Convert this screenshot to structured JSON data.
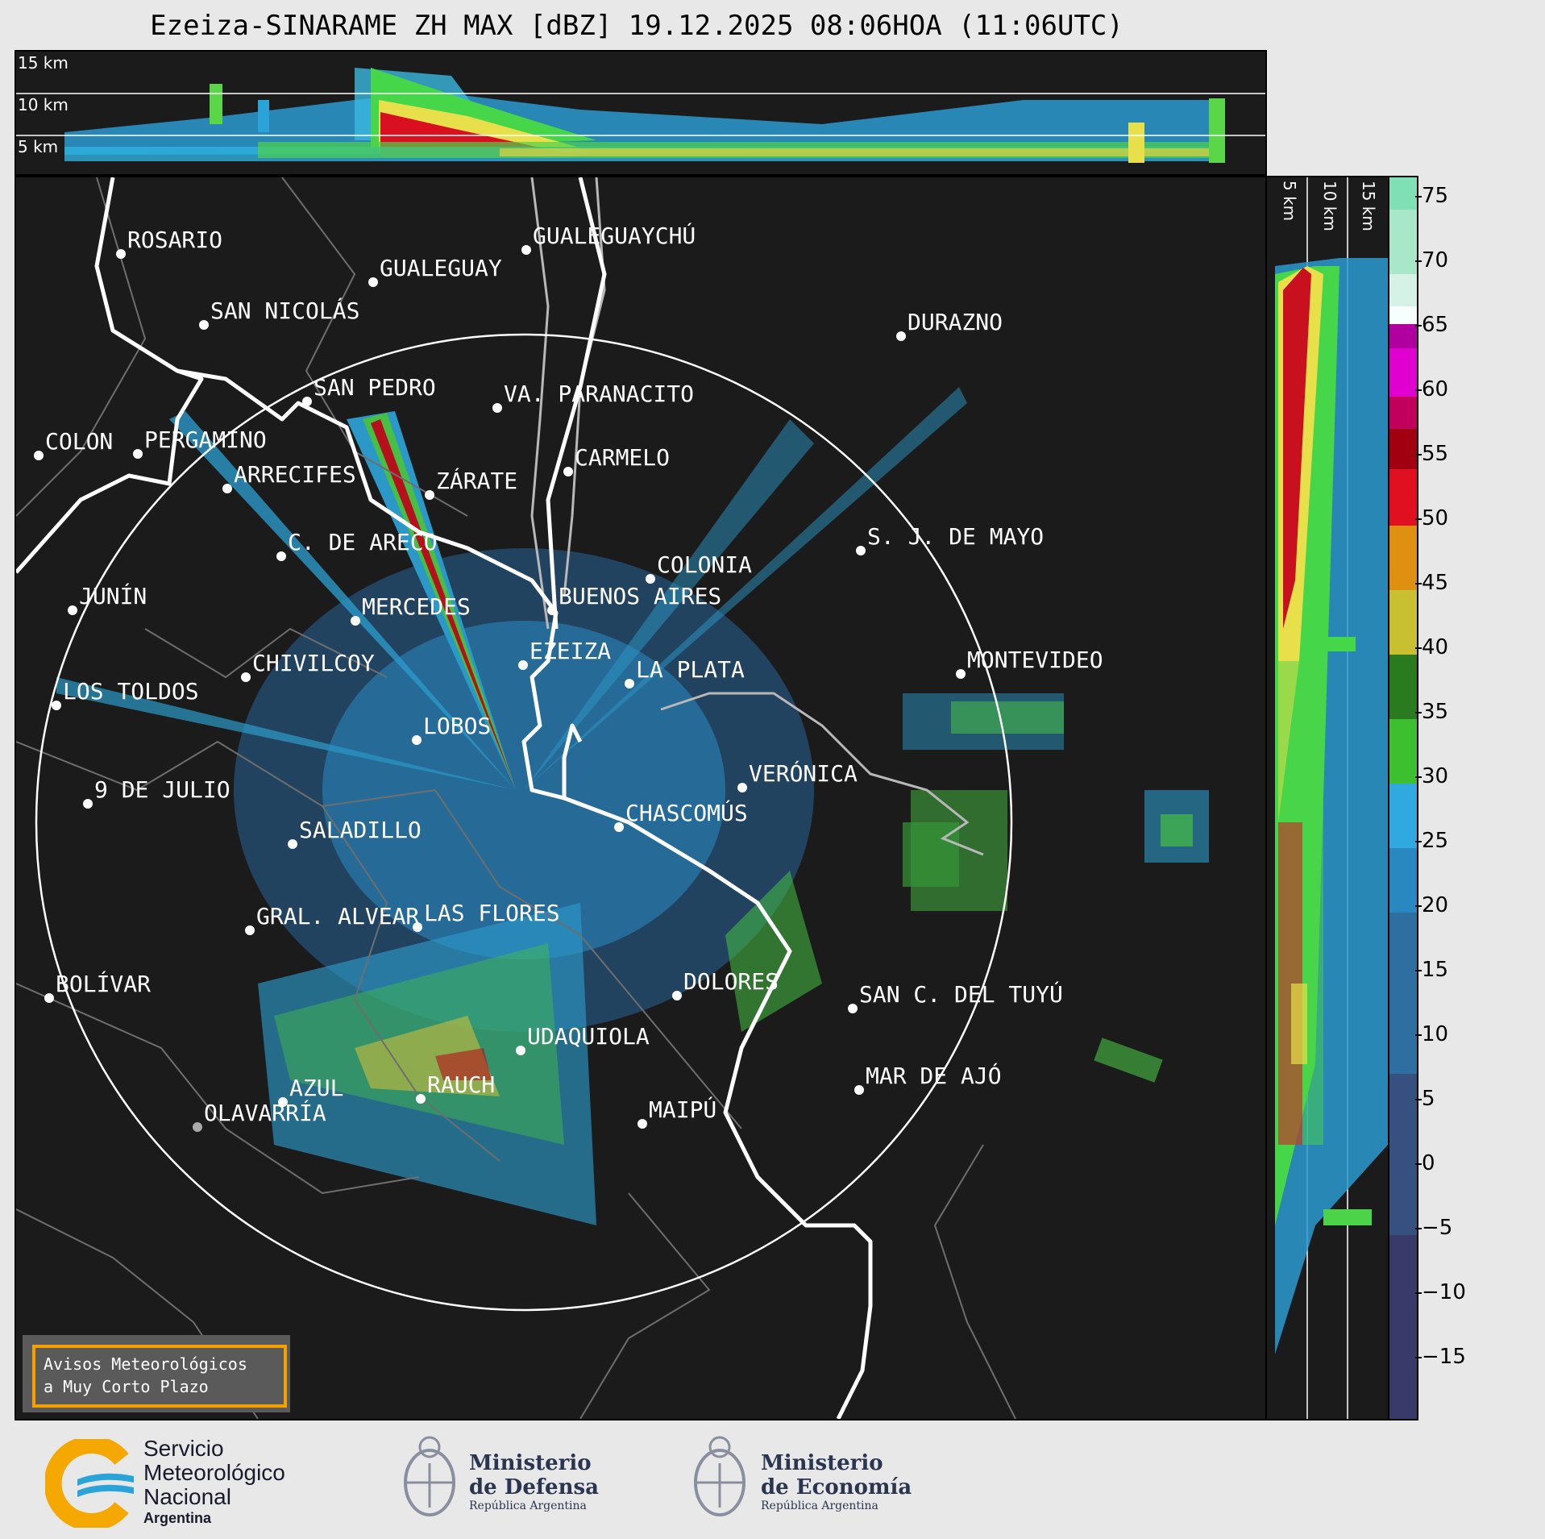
{
  "title": "Ezeiza-SINARAME ZH MAX [dBZ] 19.12.2025 08:06HOA (11:06UTC)",
  "height_labels": [
    "15 km",
    "10 km",
    "5 km"
  ],
  "cities": [
    {
      "name": "ROSARIO"
    },
    {
      "name": "GUALEGUAYCHÚ"
    },
    {
      "name": "GUALEGUAY"
    },
    {
      "name": "SAN NICOLÁS"
    },
    {
      "name": "DURAZNO"
    },
    {
      "name": "SAN PEDRO"
    },
    {
      "name": "VA. PARANACITO"
    },
    {
      "name": "COLON"
    },
    {
      "name": "PERGAMINO"
    },
    {
      "name": "CARMELO"
    },
    {
      "name": "ARRECIFES"
    },
    {
      "name": "ZÁRATE"
    },
    {
      "name": "S. J. DE MAYO"
    },
    {
      "name": "C. DE ARECO"
    },
    {
      "name": "COLONIA"
    },
    {
      "name": "JUNÍN"
    },
    {
      "name": "BUENOS AIRES"
    },
    {
      "name": "MERCEDES"
    },
    {
      "name": "MONTEVIDEO"
    },
    {
      "name": "EZEIZA"
    },
    {
      "name": "CHIVILCOY"
    },
    {
      "name": "LA PLATA"
    },
    {
      "name": "LOS TOLDOS"
    },
    {
      "name": "LOBOS"
    },
    {
      "name": "VERÓNICA"
    },
    {
      "name": "9 DE JULIO"
    },
    {
      "name": "CHASCOMÚS"
    },
    {
      "name": "SALADILLO"
    },
    {
      "name": "GRAL. ALVEAR"
    },
    {
      "name": "LAS FLORES"
    },
    {
      "name": "BOLÍVAR"
    },
    {
      "name": "DOLORES"
    },
    {
      "name": "SAN C. DEL TUYÚ"
    },
    {
      "name": "UDAQUIOLA"
    },
    {
      "name": "MAR DE AJÓ"
    },
    {
      "name": "RAUCH"
    },
    {
      "name": "AZUL"
    },
    {
      "name": "OLAVARRÍA"
    },
    {
      "name": "MAIPÚ"
    }
  ],
  "colorbar": {
    "ticks": [
      "75",
      "70",
      "65",
      "60",
      "55",
      "50",
      "45",
      "40",
      "35",
      "30",
      "25",
      "20",
      "15",
      "10",
      "5",
      "0",
      "−5",
      "−10",
      "−15"
    ]
  },
  "avisos": {
    "line1": "Avisos Meteorológicos",
    "line2": "a Muy Corto Plazo"
  },
  "logos": {
    "smn": {
      "line1": "Servicio",
      "line2": "Meteorológico",
      "line3": "Nacional",
      "line4": "Argentina"
    },
    "defensa": {
      "line1": "Ministerio",
      "line2": "de Defensa",
      "line3": "República Argentina"
    },
    "economia": {
      "line1": "Ministerio",
      "line2": "de Economía",
      "line3": "República Argentina"
    }
  },
  "colors": {
    "background": "#1b1b1b",
    "ring": "#ffffff",
    "coast": "#ffffff",
    "borders": "#6e6e6e",
    "accent": "#f4a000"
  }
}
